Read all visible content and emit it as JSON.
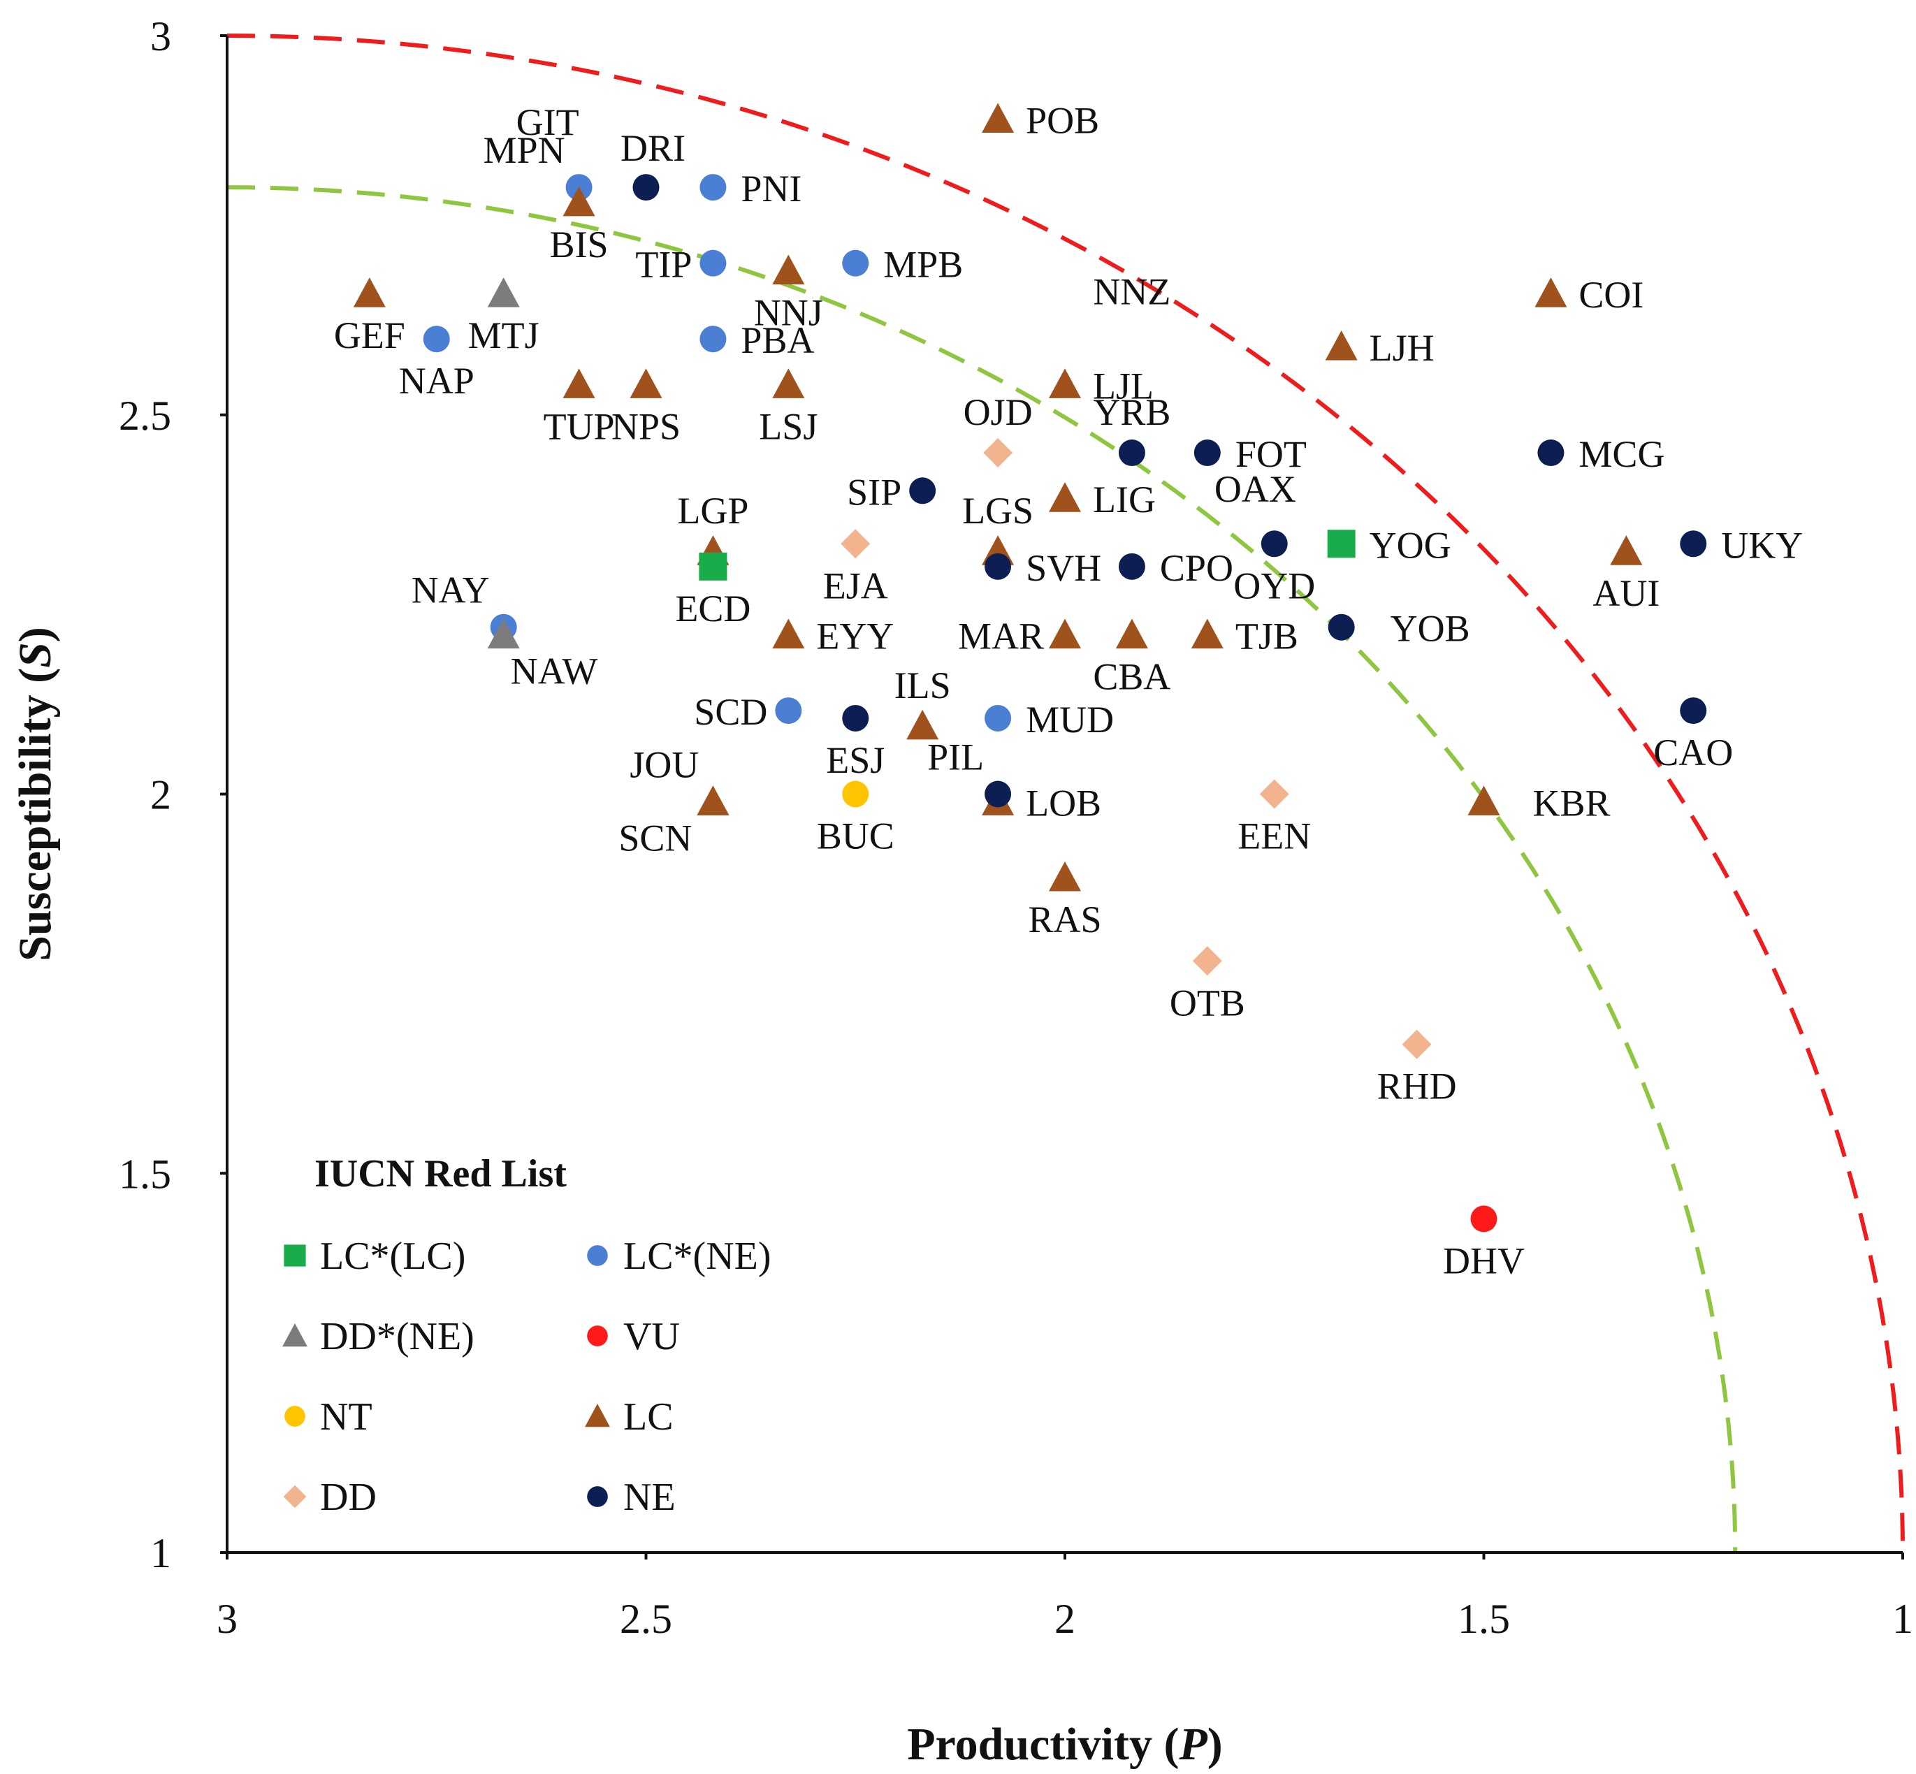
{
  "colors": {
    "LC_LC": "#1aab4b",
    "LC_NE": "#4a7fd4",
    "DD_NE": "#7d7b7c",
    "VU": "#ff1a1a",
    "NT": "#ffc400",
    "LC": "#a0521c",
    "DD": "#f2b48e",
    "NE": "#0d1f52",
    "outer_curve": "#ee1c1c",
    "inner_curve": "#8fc640",
    "axis": "#111111"
  },
  "chart_data": {
    "type": "scatter",
    "title": "",
    "xlabel": "Productivity",
    "xlabel_var": "P",
    "ylabel": "Susceptibility",
    "ylabel_var": "S",
    "xlim": [
      3,
      1
    ],
    "ylim": [
      1,
      3
    ],
    "x_reversed": true,
    "x_ticks": [
      3,
      2.5,
      2,
      1.5,
      1
    ],
    "x_tick_labels": [
      "3",
      "2.5",
      "2",
      "1.5",
      "1"
    ],
    "y_ticks": [
      1,
      1.5,
      2,
      2.5,
      3
    ],
    "y_tick_labels": [
      "1",
      "1.5",
      "2",
      "2.5",
      "3"
    ],
    "grid": false,
    "curves": [
      {
        "name": "outer",
        "style": "dashed",
        "color_key": "outer_curve",
        "center": [
          3,
          1
        ],
        "radius": 2.0
      },
      {
        "name": "inner",
        "style": "dashed",
        "color_key": "inner_curve",
        "center": [
          3,
          1
        ],
        "radius": 1.8
      }
    ],
    "legend": {
      "title": "IUCN Red List",
      "position": "bottom-left",
      "entries": [
        {
          "key": "LC_LC",
          "label": "LC*(LC)",
          "marker": "square"
        },
        {
          "key": "LC_NE",
          "label": "LC*(NE)",
          "marker": "circle"
        },
        {
          "key": "DD_NE",
          "label": "DD*(NE)",
          "marker": "triangle"
        },
        {
          "key": "VU",
          "label": "VU",
          "marker": "circle"
        },
        {
          "key": "NT",
          "label": "NT",
          "marker": "circle"
        },
        {
          "key": "LC",
          "label": "LC",
          "marker": "triangle"
        },
        {
          "key": "DD",
          "label": "DD",
          "marker": "diamond"
        },
        {
          "key": "NE",
          "label": "NE",
          "marker": "circle"
        }
      ]
    },
    "points": [
      {
        "x": 2.08,
        "y": 2.89,
        "cat": "LC",
        "label": "POB",
        "pos": "e"
      },
      {
        "x": 2.58,
        "y": 2.8,
        "cat": "LC_NE",
        "label": "MPN",
        "pos": "nw"
      },
      {
        "x": 2.5,
        "y": 2.8,
        "cat": "NE",
        "label": "DRI",
        "pos": "ne"
      },
      {
        "x": 2.42,
        "y": 2.8,
        "cat": "LC_NE",
        "label": "PNI",
        "pos": "e"
      },
      {
        "x": 2.58,
        "y": 2.78,
        "cat": "LC",
        "label": "BIS",
        "pos": "s"
      },
      {
        "x": 2.42,
        "y": 2.7,
        "cat": "LC_NE",
        "label": "TIP",
        "pos": "w"
      },
      {
        "x": 2.33,
        "y": 2.69,
        "cat": "LC",
        "label": "NNJ",
        "pos": "s"
      },
      {
        "x": 2.25,
        "y": 2.7,
        "cat": "LC_NE",
        "label": "MPB",
        "pos": "e"
      },
      {
        "x": 2.83,
        "y": 2.66,
        "cat": "LC",
        "label": "GEF",
        "pos": "s"
      },
      {
        "x": 2.67,
        "y": 2.66,
        "cat": "DD_NE",
        "label": "MTJ",
        "pos": "s"
      },
      {
        "x": 2.75,
        "y": 2.6,
        "cat": "LC_NE",
        "label": "NAP",
        "pos": "s"
      },
      {
        "x": 2.42,
        "y": 2.6,
        "cat": "LC_NE",
        "label": "PBA",
        "pos": "e"
      },
      {
        "x": 2.58,
        "y": 2.54,
        "cat": "LC",
        "label": "TUP",
        "pos": "s"
      },
      {
        "x": 2.5,
        "y": 2.54,
        "cat": "LC",
        "label": "NPS",
        "pos": "s"
      },
      {
        "x": 2.33,
        "y": 2.54,
        "cat": "LC",
        "label": "LSJ",
        "pos": "s"
      },
      {
        "x": 2.0,
        "y": 2.54,
        "cat": "LC",
        "label": "LJL",
        "pos": "e"
      },
      {
        "x": 1.42,
        "y": 2.66,
        "cat": "LC",
        "label": "COI",
        "pos": "e"
      },
      {
        "x": 1.67,
        "y": 2.59,
        "cat": "LC",
        "label": "LJH",
        "pos": "e"
      },
      {
        "x": 2.08,
        "y": 2.45,
        "cat": "DD",
        "label": "OJD",
        "pos": "n"
      },
      {
        "x": 1.92,
        "y": 2.45,
        "cat": "NE",
        "label": "YRB",
        "pos": "n"
      },
      {
        "x": 1.83,
        "y": 2.45,
        "cat": "NE",
        "label": "FOT",
        "pos": "e"
      },
      {
        "x": 1.42,
        "y": 2.45,
        "cat": "NE",
        "label": "MCG",
        "pos": "e"
      },
      {
        "x": 2.17,
        "y": 2.4,
        "cat": "NE",
        "label": "SIP",
        "pos": "w"
      },
      {
        "x": 2.0,
        "y": 2.39,
        "cat": "LC",
        "label": "LIG",
        "pos": "e"
      },
      {
        "x": 2.42,
        "y": 2.32,
        "cat": "LC",
        "label": "LGP",
        "pos": "n"
      },
      {
        "x": 2.42,
        "y": 2.3,
        "cat": "LC_LC",
        "label": "ECD",
        "pos": "s"
      },
      {
        "x": 2.25,
        "y": 2.33,
        "cat": "DD",
        "label": "EJA",
        "pos": "s"
      },
      {
        "x": 2.08,
        "y": 2.32,
        "cat": "LC",
        "label": "LGS",
        "pos": "n"
      },
      {
        "x": 2.08,
        "y": 2.3,
        "cat": "NE",
        "label": "SVH",
        "pos": "e"
      },
      {
        "x": 1.92,
        "y": 2.3,
        "cat": "NE",
        "label": "CPO",
        "pos": "e"
      },
      {
        "x": 1.75,
        "y": 2.33,
        "cat": "NE",
        "label": "OYD",
        "pos": "s"
      },
      {
        "x": 1.67,
        "y": 2.33,
        "cat": "LC_LC",
        "label": "YOG",
        "pos": "e"
      },
      {
        "x": 1.33,
        "y": 2.32,
        "cat": "LC",
        "label": "AUI",
        "pos": "s"
      },
      {
        "x": 1.25,
        "y": 2.33,
        "cat": "NE",
        "label": "UKY",
        "pos": "e"
      },
      {
        "x": 2.67,
        "y": 2.22,
        "cat": "LC_NE",
        "label": "NAY",
        "pos": "nw"
      },
      {
        "x": 2.67,
        "y": 2.21,
        "cat": "DD_NE",
        "label": "NAW",
        "pos": "se"
      },
      {
        "x": 2.33,
        "y": 2.21,
        "cat": "LC",
        "label": "EYY",
        "pos": "e"
      },
      {
        "x": 2.0,
        "y": 2.21,
        "cat": "LC",
        "label": "MAR",
        "pos": "w"
      },
      {
        "x": 1.92,
        "y": 2.21,
        "cat": "LC",
        "label": "CBA",
        "pos": "s"
      },
      {
        "x": 1.83,
        "y": 2.21,
        "cat": "LC",
        "label": "TJB",
        "pos": "e"
      },
      {
        "x": 1.67,
        "y": 2.22,
        "cat": "NE",
        "label": "YOB",
        "pos": "e2"
      },
      {
        "x": 2.33,
        "y": 2.11,
        "cat": "LC_NE",
        "label": "SCD",
        "pos": "w"
      },
      {
        "x": 2.25,
        "y": 2.1,
        "cat": "NE",
        "label": "ESJ",
        "pos": "s"
      },
      {
        "x": 2.17,
        "y": 2.09,
        "cat": "LC",
        "label": "ILS",
        "pos": "n"
      },
      {
        "x": 2.08,
        "y": 2.1,
        "cat": "LC_NE",
        "label": "MUD",
        "pos": "e"
      },
      {
        "x": 1.25,
        "y": 2.11,
        "cat": "NE",
        "label": "CAO",
        "pos": "s"
      },
      {
        "x": 2.42,
        "y": 1.99,
        "cat": "LC",
        "label": "JOU",
        "pos": "nw"
      },
      {
        "x": 2.42,
        "y": 1.99,
        "cat": "LC",
        "label": "SCN",
        "pos": "sw"
      },
      {
        "x": 2.25,
        "y": 2.0,
        "cat": "NT",
        "label": "BUC",
        "pos": "s"
      },
      {
        "x": 2.08,
        "y": 1.99,
        "cat": "LC",
        "label": "LOB",
        "pos": "e"
      },
      {
        "x": 2.08,
        "y": 2.0,
        "cat": "NE",
        "label": "PIL",
        "pos": "nw"
      },
      {
        "x": 1.75,
        "y": 2.0,
        "cat": "DD",
        "label": "EEN",
        "pos": "s"
      },
      {
        "x": 1.5,
        "y": 1.99,
        "cat": "LC",
        "label": "KBR",
        "pos": "e2"
      },
      {
        "x": 2.0,
        "y": 1.89,
        "cat": "LC",
        "label": "RAS",
        "pos": "s"
      },
      {
        "x": 1.83,
        "y": 1.78,
        "cat": "DD",
        "label": "OTB",
        "pos": "s"
      },
      {
        "x": 1.58,
        "y": 1.67,
        "cat": "DD",
        "label": "RHD",
        "pos": "s"
      },
      {
        "x": 1.5,
        "y": 1.44,
        "cat": "VU",
        "label": "DHV",
        "pos": "s"
      }
    ],
    "extra_labels": [
      {
        "label": "GIT",
        "x": 2.58,
        "y": 2.8,
        "pos": "nnw"
      },
      {
        "label": "NNZ",
        "x": 1.92,
        "y": 2.54,
        "pos": "n2"
      },
      {
        "label": "OAX",
        "x": 1.83,
        "y": 2.45,
        "pos": "se"
      }
    ]
  }
}
